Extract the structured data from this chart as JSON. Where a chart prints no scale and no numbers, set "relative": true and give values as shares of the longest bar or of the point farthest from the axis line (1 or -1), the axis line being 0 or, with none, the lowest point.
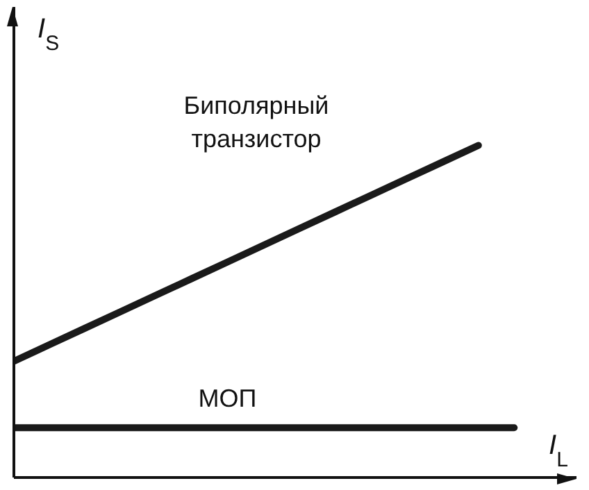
{
  "chart_data": {
    "type": "line",
    "relative": true,
    "xlabel": "I$_{L}$",
    "ylabel": "I$_{S}$",
    "legend": false,
    "marker": "none",
    "line_style": "solid",
    "categories": [
      null,
      null,
      null,
      null,
      null,
      null,
      null,
      null,
      null,
      null,
      null,
      null,
      null,
      null,
      null
    ],
    "series": [
      {
        "name": "Биполярный транзистор",
        "color": "#1a1a1a",
        "values": [
          0.35,
          0.4,
          0.45,
          0.5,
          0.55,
          0.6,
          0.65,
          0.7,
          0.75,
          0.8,
          0.85,
          0.9,
          0.95,
          1,
          null
        ]
      },
      {
        "name": "МОП",
        "color": "#1a1a1a",
        "values": [
          0.15,
          0.15,
          0.15,
          0.15,
          0.15,
          0.15,
          0.15,
          0.15,
          0.15,
          0.15,
          0.15,
          0.15,
          0.15,
          0.15,
          0.15
        ]
      }
    ]
  }
}
